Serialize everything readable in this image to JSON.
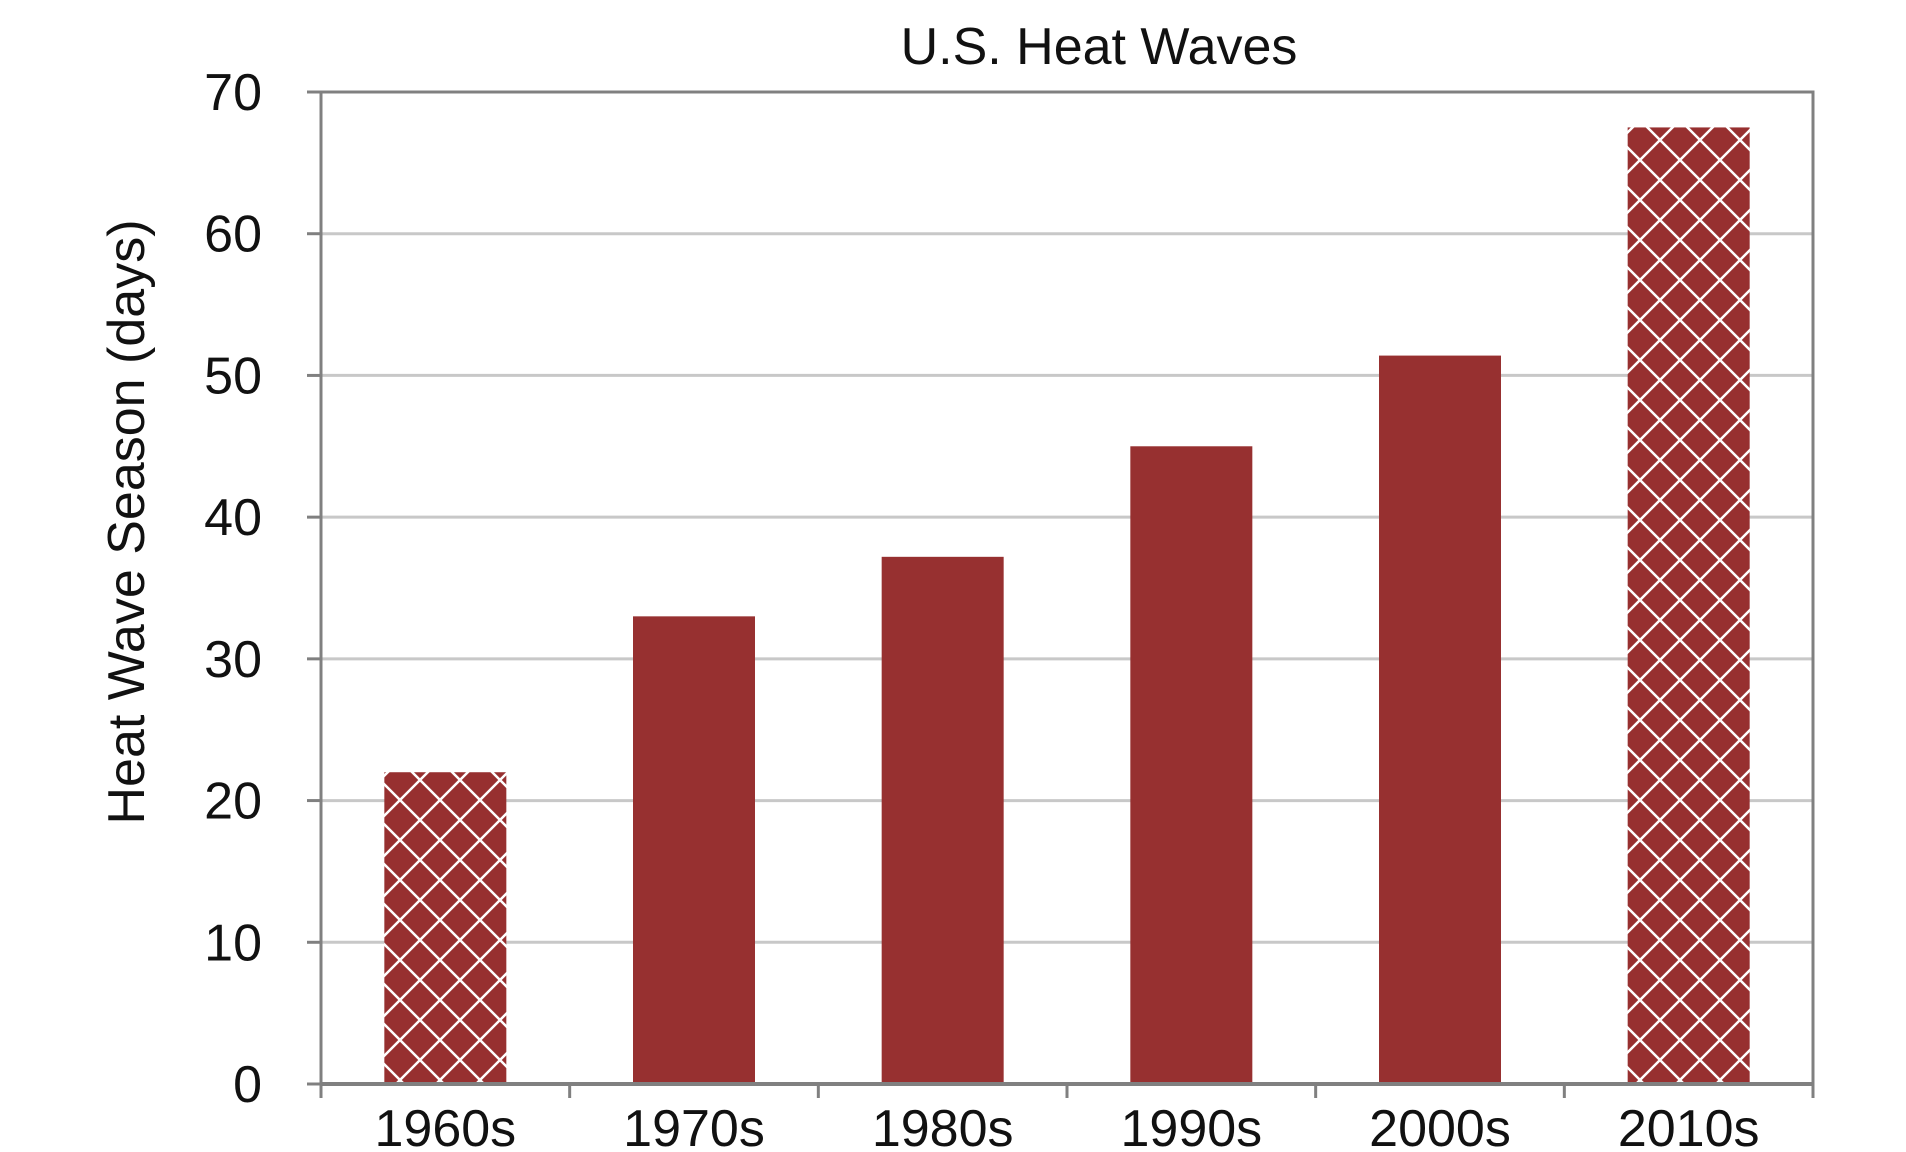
{
  "chart_data": {
    "type": "bar",
    "title": "U.S. Heat Waves",
    "xlabel": "",
    "ylabel": "Heat Wave Season (days)",
    "categories": [
      "1960s",
      "1970s",
      "1980s",
      "1990s",
      "2000s",
      "2010s"
    ],
    "values": [
      22,
      33,
      37.2,
      45,
      51.4,
      67.5
    ],
    "hatched": [
      true,
      false,
      false,
      false,
      false,
      true
    ],
    "ylim": [
      0,
      70
    ],
    "yticks": [
      0,
      10,
      20,
      30,
      40,
      50,
      60,
      70
    ],
    "grid": true,
    "bar_color": "#973030",
    "hatch_color": "#ffffff",
    "grid_color": "#c8c8c8",
    "frame_color": "#808080"
  }
}
